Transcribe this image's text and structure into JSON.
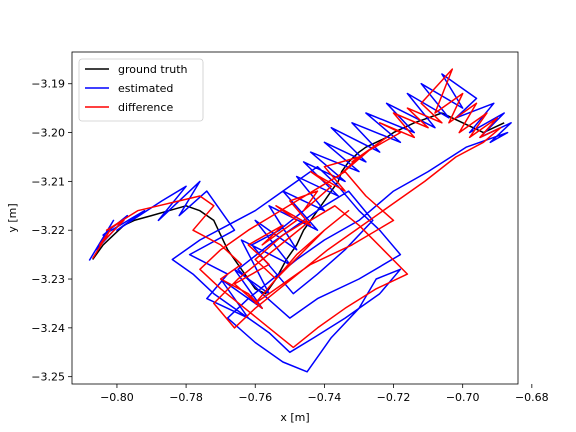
{
  "colors": {
    "ground_truth": "#000000",
    "estimated": "#0000ff",
    "difference": "#ff0000"
  },
  "chart_data": {
    "type": "line",
    "title": "",
    "xlabel": "x [m]",
    "ylabel": "y [m]",
    "xlim": [
      -0.813,
      -0.684
    ],
    "ylim": [
      -3.2515,
      -3.1835
    ],
    "xticks": [
      -0.8,
      -0.78,
      -0.76,
      -0.74,
      -0.72,
      -0.7,
      -0.68
    ],
    "xtick_labels": [
      "−0.80",
      "−0.78",
      "−0.76",
      "−0.74",
      "−0.72",
      "−0.70",
      "−0.68"
    ],
    "yticks": [
      -3.25,
      -3.24,
      -3.23,
      -3.22,
      -3.21,
      -3.2,
      -3.19
    ],
    "ytick_labels": [
      "−3.25",
      "−3.24",
      "−3.23",
      "−3.22",
      "−3.21",
      "−3.20",
      "−3.19"
    ],
    "grid": false,
    "legend_position": "upper-left",
    "legend": [
      "ground truth",
      "estimated",
      "difference"
    ],
    "series": [
      {
        "name": "ground truth",
        "color": "#000000",
        "x": [
          -0.807,
          -0.804,
          -0.801,
          -0.798,
          -0.795,
          -0.79,
          -0.785,
          -0.78,
          -0.776,
          -0.772,
          -0.77,
          -0.768,
          -0.765,
          -0.762,
          -0.76,
          -0.757,
          -0.754,
          -0.751,
          -0.748,
          -0.746,
          -0.744,
          -0.742,
          -0.74,
          -0.738,
          -0.736,
          -0.735,
          -0.733,
          -0.73,
          -0.728,
          -0.725,
          -0.722,
          -0.72,
          -0.717,
          -0.714,
          -0.71,
          -0.706,
          -0.703,
          -0.7,
          -0.697,
          -0.694,
          -0.691,
          -0.688
        ],
        "y": [
          -3.226,
          -3.223,
          -3.221,
          -3.219,
          -3.218,
          -3.217,
          -3.216,
          -3.215,
          -3.216,
          -3.218,
          -3.221,
          -3.224,
          -3.227,
          -3.23,
          -3.232,
          -3.233,
          -3.23,
          -3.226,
          -3.223,
          -3.22,
          -3.218,
          -3.216,
          -3.214,
          -3.212,
          -3.21,
          -3.208,
          -3.206,
          -3.204,
          -3.203,
          -3.202,
          -3.201,
          -3.2,
          -3.199,
          -3.198,
          -3.197,
          -3.196,
          -3.197,
          -3.198,
          -3.199,
          -3.2,
          -3.199,
          -3.198
        ]
      },
      {
        "name": "estimated",
        "color": "#0000ff",
        "x": [
          -0.808,
          -0.801,
          -0.806,
          -0.797,
          -0.804,
          -0.792,
          -0.8,
          -0.787,
          -0.78,
          -0.788,
          -0.776,
          -0.782,
          -0.774,
          -0.766,
          -0.779,
          -0.768,
          -0.774,
          -0.762,
          -0.77,
          -0.758,
          -0.766,
          -0.756,
          -0.764,
          -0.75,
          -0.76,
          -0.748,
          -0.756,
          -0.742,
          -0.752,
          -0.74,
          -0.748,
          -0.736,
          -0.746,
          -0.734,
          -0.744,
          -0.73,
          -0.74,
          -0.728,
          -0.738,
          -0.724,
          -0.732,
          -0.718,
          -0.728,
          -0.714,
          -0.722,
          -0.708,
          -0.716,
          -0.704,
          -0.712,
          -0.7,
          -0.706,
          -0.696,
          -0.702,
          -0.691,
          -0.698,
          -0.688,
          -0.695,
          -0.686,
          -0.692,
          -0.687,
          -0.699,
          -0.71,
          -0.72,
          -0.73,
          -0.74,
          -0.748,
          -0.755,
          -0.762,
          -0.768,
          -0.76,
          -0.752,
          -0.745,
          -0.738,
          -0.73,
          -0.725,
          -0.718,
          -0.724,
          -0.734,
          -0.743,
          -0.75,
          -0.756,
          -0.764,
          -0.772,
          -0.778,
          -0.784,
          -0.776,
          -0.768,
          -0.76,
          -0.754,
          -0.748,
          -0.742,
          -0.736,
          -0.73,
          -0.724,
          -0.718,
          -0.73,
          -0.742,
          -0.75,
          -0.758,
          -0.765,
          -0.756,
          -0.748,
          -0.74,
          -0.733,
          -0.726,
          -0.734,
          -0.742,
          -0.749,
          -0.755,
          -0.761,
          -0.753,
          -0.746
        ],
        "y": [
          -3.2262,
          -3.218,
          -3.224,
          -3.217,
          -3.221,
          -3.216,
          -3.22,
          -3.214,
          -3.211,
          -3.218,
          -3.21,
          -3.217,
          -3.212,
          -3.22,
          -3.225,
          -3.229,
          -3.234,
          -3.238,
          -3.23,
          -3.236,
          -3.228,
          -3.233,
          -3.222,
          -3.227,
          -3.218,
          -3.224,
          -3.215,
          -3.22,
          -3.212,
          -3.216,
          -3.209,
          -3.213,
          -3.206,
          -3.21,
          -3.204,
          -3.208,
          -3.202,
          -3.206,
          -3.199,
          -3.204,
          -3.198,
          -3.202,
          -3.196,
          -3.2,
          -3.194,
          -3.199,
          -3.192,
          -3.197,
          -3.19,
          -3.195,
          -3.188,
          -3.193,
          -3.197,
          -3.194,
          -3.2,
          -3.196,
          -3.201,
          -3.198,
          -3.202,
          -3.2,
          -3.203,
          -3.208,
          -3.212,
          -3.218,
          -3.222,
          -3.226,
          -3.23,
          -3.234,
          -3.238,
          -3.243,
          -3.247,
          -3.249,
          -3.242,
          -3.236,
          -3.23,
          -3.228,
          -3.233,
          -3.238,
          -3.242,
          -3.245,
          -3.241,
          -3.237,
          -3.233,
          -3.229,
          -3.226,
          -3.222,
          -3.219,
          -3.216,
          -3.213,
          -3.21,
          -3.207,
          -3.211,
          -3.216,
          -3.22,
          -3.225,
          -3.23,
          -3.234,
          -3.238,
          -3.233,
          -3.228,
          -3.223,
          -3.219,
          -3.215,
          -3.212,
          -3.218,
          -3.224,
          -3.229,
          -3.233,
          -3.228,
          -3.223,
          -3.22,
          -3.216
        ]
      },
      {
        "name": "difference",
        "color": "#ff0000",
        "x": [
          -0.807,
          -0.802,
          -0.805,
          -0.798,
          -0.803,
          -0.794,
          -0.788,
          -0.782,
          -0.776,
          -0.772,
          -0.778,
          -0.77,
          -0.764,
          -0.77,
          -0.762,
          -0.758,
          -0.766,
          -0.756,
          -0.762,
          -0.752,
          -0.758,
          -0.748,
          -0.754,
          -0.744,
          -0.75,
          -0.742,
          -0.746,
          -0.738,
          -0.744,
          -0.734,
          -0.74,
          -0.73,
          -0.736,
          -0.726,
          -0.732,
          -0.722,
          -0.728,
          -0.718,
          -0.724,
          -0.714,
          -0.72,
          -0.71,
          -0.716,
          -0.706,
          -0.712,
          -0.703,
          -0.708,
          -0.7,
          -0.704,
          -0.696,
          -0.701,
          -0.693,
          -0.698,
          -0.69,
          -0.695,
          -0.689,
          -0.694,
          -0.702,
          -0.711,
          -0.721,
          -0.731,
          -0.739,
          -0.746,
          -0.753,
          -0.76,
          -0.766,
          -0.772,
          -0.765,
          -0.758,
          -0.751,
          -0.744,
          -0.737,
          -0.73,
          -0.723,
          -0.716,
          -0.725,
          -0.734,
          -0.742,
          -0.749,
          -0.756,
          -0.763,
          -0.77,
          -0.776,
          -0.77,
          -0.762,
          -0.755,
          -0.748,
          -0.741,
          -0.734,
          -0.728,
          -0.72,
          -0.732,
          -0.744,
          -0.752,
          -0.76,
          -0.754,
          -0.747,
          -0.74,
          -0.733,
          -0.74,
          -0.748,
          -0.754,
          -0.76,
          -0.752,
          -0.745
        ],
        "y": [
          -3.2258,
          -3.22,
          -3.223,
          -3.218,
          -3.22,
          -3.216,
          -3.215,
          -3.214,
          -3.213,
          -3.215,
          -3.22,
          -3.223,
          -3.227,
          -3.23,
          -3.233,
          -3.236,
          -3.231,
          -3.227,
          -3.223,
          -3.219,
          -3.223,
          -3.218,
          -3.215,
          -3.219,
          -3.214,
          -3.212,
          -3.216,
          -3.211,
          -3.208,
          -3.212,
          -3.207,
          -3.205,
          -3.209,
          -3.203,
          -3.206,
          -3.201,
          -3.204,
          -3.2,
          -3.198,
          -3.201,
          -3.196,
          -3.199,
          -3.195,
          -3.198,
          -3.194,
          -3.187,
          -3.196,
          -3.192,
          -3.198,
          -3.194,
          -3.2,
          -3.196,
          -3.201,
          -3.197,
          -3.201,
          -3.199,
          -3.202,
          -3.205,
          -3.21,
          -3.215,
          -3.22,
          -3.224,
          -3.228,
          -3.232,
          -3.236,
          -3.24,
          -3.235,
          -3.23,
          -3.226,
          -3.222,
          -3.218,
          -3.215,
          -3.219,
          -3.224,
          -3.229,
          -3.232,
          -3.236,
          -3.24,
          -3.244,
          -3.24,
          -3.236,
          -3.232,
          -3.228,
          -3.224,
          -3.22,
          -3.217,
          -3.214,
          -3.211,
          -3.208,
          -3.213,
          -3.218,
          -3.223,
          -3.227,
          -3.231,
          -3.235,
          -3.23,
          -3.225,
          -3.22,
          -3.216,
          -3.22,
          -3.225,
          -3.23,
          -3.226,
          -3.221,
          -3.218
        ]
      }
    ]
  }
}
